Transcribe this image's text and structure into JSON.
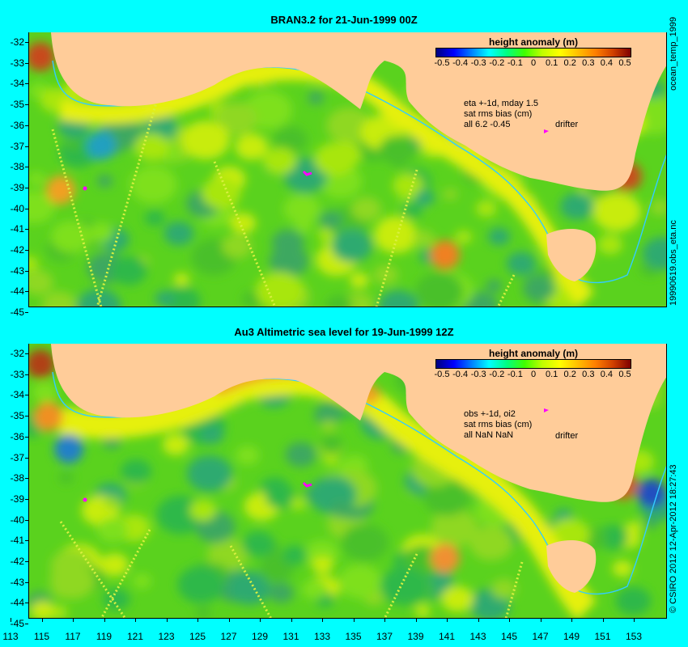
{
  "panels": [
    {
      "title": "BRAN3.2 for 21-Jun-1999 00Z",
      "side_label": "19990619.obs_eta.nc",
      "side_label_top": "ocean_temp_1999",
      "colorbar_title": "height anomaly (m)",
      "notes": [
        "eta +-1d, mday 1.5",
        "sat rms bias (cm)",
        "all 6.2 -0.45"
      ],
      "drifter_label": "drifter"
    },
    {
      "title": "Au3 Altimetric sea level  for 19-Jun-1999 12Z",
      "side_label": "© CSIRO 2012 12-Apr-2012 18:27:43",
      "colorbar_title": "height anomaly (m)",
      "notes": [
        "obs +-1d, oi2",
        "sat rms bias (cm)",
        "all NaN NaN"
      ],
      "drifter_label": "drifter"
    }
  ],
  "colorbar_ticks": [
    "-0.5",
    "-0.4",
    "-0.3",
    "-0.2",
    "-0.1",
    "0",
    "0.1",
    "0.2",
    "0.3",
    "0.4",
    "0.5"
  ],
  "y_ticks": [
    "-32",
    "-33",
    "-34",
    "-35",
    "-36",
    "-37",
    "-38",
    "-39",
    "-40",
    "-41",
    "-42",
    "-43",
    "-44",
    "-45"
  ],
  "x_ticks": [
    "113",
    "115",
    "117",
    "119",
    "121",
    "123",
    "125",
    "127",
    "129",
    "131",
    "133",
    "135",
    "137",
    "139",
    "141",
    "143",
    "145",
    "147",
    "149",
    "151",
    "153"
  ],
  "colors": {
    "background": "#00ffff",
    "land": "#ffcc99",
    "coastline_200m": "#33ccff",
    "drifter": "#ff00ff"
  }
}
